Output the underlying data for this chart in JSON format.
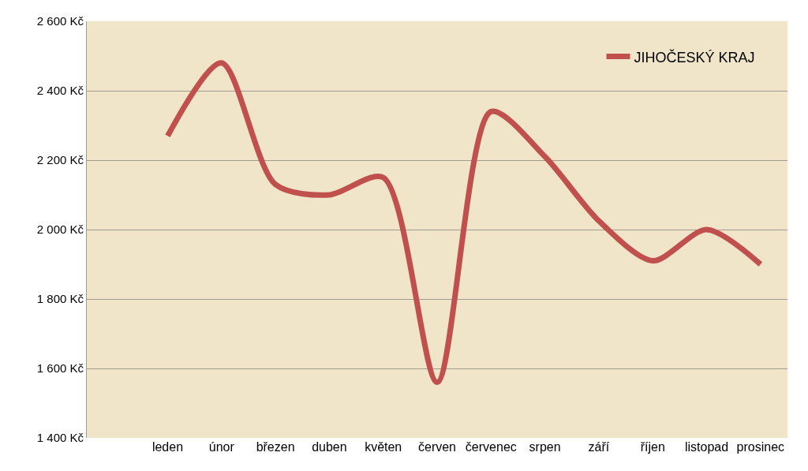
{
  "chart_data": {
    "type": "line",
    "categories": [
      "leden",
      "únor",
      "březen",
      "duben",
      "květen",
      "červen",
      "červenec",
      "srpen",
      "září",
      "říjen",
      "listopad",
      "prosinec"
    ],
    "series": [
      {
        "name": "JIHOČESKÝ KRAJ",
        "color": "#c0504d",
        "values": [
          2270,
          2480,
          2130,
          2100,
          2150,
          1560,
          2340,
          2210,
          2025,
          1910,
          2000,
          1900
        ]
      }
    ],
    "ylim": [
      1400,
      2600
    ],
    "yticks": [
      {
        "value": 1400,
        "label": "1 400 Kč"
      },
      {
        "value": 1600,
        "label": "1 600 Kč"
      },
      {
        "value": 1800,
        "label": "1 800 Kč"
      },
      {
        "value": 2000,
        "label": "2 000 Kč"
      },
      {
        "value": 2200,
        "label": "2 200 Kč"
      },
      {
        "value": 2400,
        "label": "2 400 Kč"
      },
      {
        "value": 2600,
        "label": "2 600 Kč"
      }
    ],
    "grid": "y",
    "legend": "top right",
    "marker": "none",
    "line_style": "solid"
  }
}
